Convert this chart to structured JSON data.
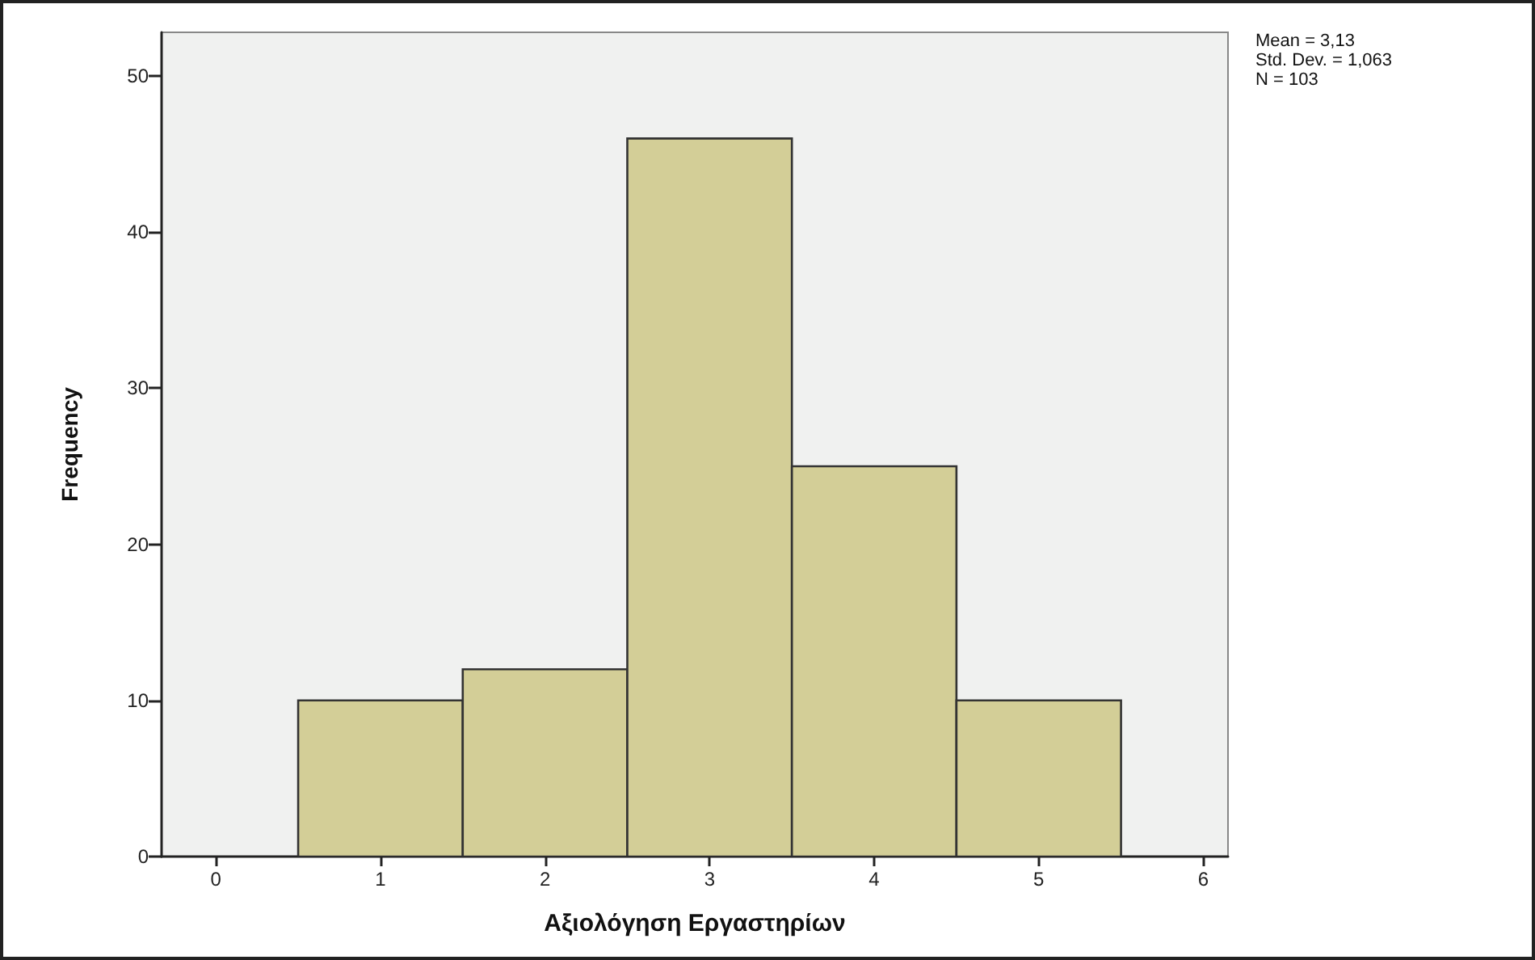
{
  "chart_data": {
    "type": "histogram",
    "xlabel": "Αξιολόγηση Εργαστηρίων",
    "ylabel": "Frequency",
    "bins": [
      0.5,
      1.5,
      2.5,
      3.5,
      4.5,
      5.5
    ],
    "values": [
      10,
      12,
      46,
      25,
      10
    ],
    "color": "#d3ce97",
    "xlim": [
      -0.33,
      6.15
    ],
    "xticks": [
      0,
      1,
      2,
      3,
      4,
      5,
      6
    ],
    "ylim": [
      0,
      52.8
    ],
    "yticks": [
      0,
      10,
      20,
      30,
      40,
      50
    ],
    "annotations": [
      "Mean = 3,13",
      "Std. Dev. = 1,063",
      "N = 103"
    ]
  }
}
